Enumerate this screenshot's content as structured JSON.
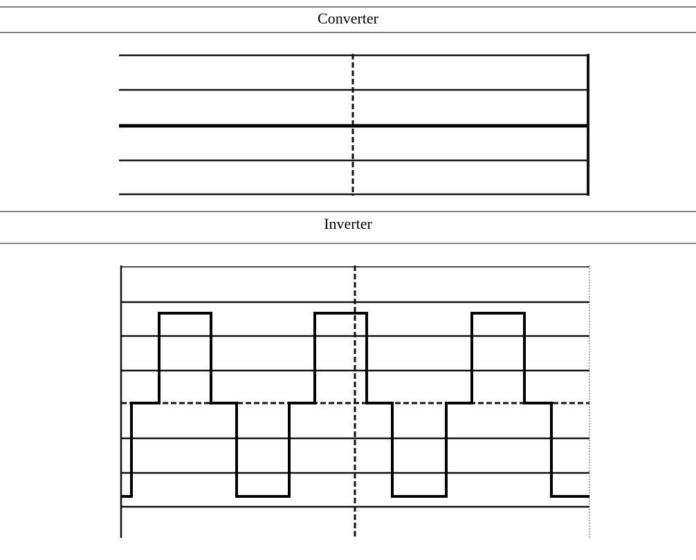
{
  "sections": [
    {
      "title": "Converter"
    },
    {
      "title": "Inverter"
    }
  ]
}
